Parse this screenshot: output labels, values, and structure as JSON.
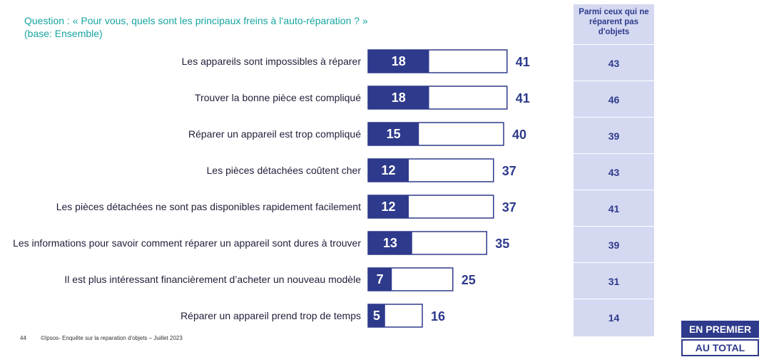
{
  "question": {
    "line1": "Question : « Pour vous, quels sont les principaux freins à l’auto-réparation ? »",
    "line2": "(base: Ensemble)"
  },
  "chart_data": {
    "type": "bar",
    "orientation": "horizontal",
    "categories": [
      "Les appareils sont impossibles à réparer",
      "Trouver la bonne pièce est compliqué",
      "Réparer un appareil est trop compliqué",
      "Les pièces détachées coûtent cher",
      "Les pièces détachées ne sont pas disponibles rapidement facilement",
      "Les informations pour savoir comment réparer un appareil sont dures à trouver",
      "Il est plus intéressant financièrement d’acheter un nouveau modèle",
      "Réparer un appareil prend trop de temps"
    ],
    "series": [
      {
        "name": "EN PREMIER",
        "values": [
          18,
          18,
          15,
          12,
          12,
          13,
          7,
          5
        ]
      },
      {
        "name": "AU TOTAL",
        "values": [
          41,
          41,
          40,
          37,
          37,
          35,
          25,
          16
        ]
      }
    ],
    "colors": {
      "first": "#2e3a8c",
      "total_border": "#2e3a8c",
      "accent": "#17a5a0",
      "panel": "#d4d9f1"
    }
  },
  "side_column": {
    "header": "Parmi ceux qui ne réparent pas d'objets",
    "values": [
      43,
      46,
      39,
      43,
      41,
      39,
      31,
      14
    ]
  },
  "legend": {
    "first": "EN PREMIER",
    "total": "AU TOTAL"
  },
  "footer": {
    "page": "44",
    "source": "©Ipsos- Enquête sur la reparation d'objets – Juillet 2023"
  }
}
